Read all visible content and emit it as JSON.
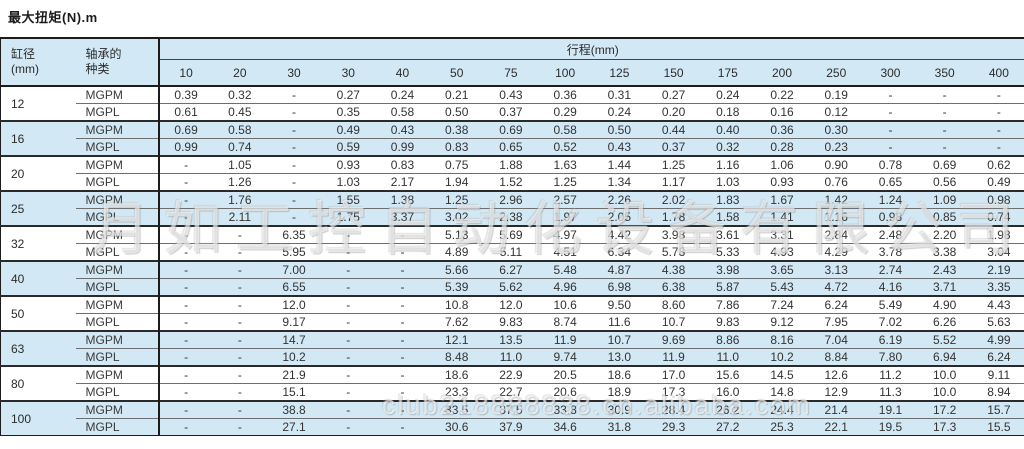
{
  "title": "最大扭矩(N).m",
  "table": {
    "col_bore_line1": "缸径",
    "col_bore_line2": "(mm)",
    "col_bearing_line1": "轴承的",
    "col_bearing_line2": "种类",
    "stroke_header": "行程(mm)",
    "stroke_columns": [
      "10",
      "20",
      "30",
      "30",
      "40",
      "50",
      "75",
      "100",
      "125",
      "150",
      "175",
      "200",
      "250",
      "300",
      "350",
      "400"
    ],
    "groups": [
      {
        "bore": "12",
        "rows": [
          {
            "type": "MGPM",
            "values": [
              "0.39",
              "0.32",
              "-",
              "0.27",
              "0.24",
              "0.21",
              "0.43",
              "0.36",
              "0.31",
              "0.27",
              "0.24",
              "0.22",
              "0.19",
              "-",
              "-",
              "-"
            ]
          },
          {
            "type": "MGPL",
            "values": [
              "0.61",
              "0.45",
              "-",
              "0.35",
              "0.58",
              "0.50",
              "0.37",
              "0.29",
              "0.24",
              "0.20",
              "0.18",
              "0.16",
              "0.12",
              "-",
              "-",
              "-"
            ]
          }
        ]
      },
      {
        "bore": "16",
        "rows": [
          {
            "type": "MGPM",
            "values": [
              "0.69",
              "0.58",
              "-",
              "0.49",
              "0.43",
              "0.38",
              "0.69",
              "0.58",
              "0.50",
              "0.44",
              "0.40",
              "0.36",
              "0.30",
              "-",
              "-",
              "-"
            ]
          },
          {
            "type": "MGPL",
            "values": [
              "0.99",
              "0.74",
              "-",
              "0.59",
              "0.99",
              "0.83",
              "0.65",
              "0.52",
              "0.43",
              "0.37",
              "0.32",
              "0.28",
              "0.23",
              "-",
              "-",
              "-"
            ]
          }
        ]
      },
      {
        "bore": "20",
        "rows": [
          {
            "type": "MGPM",
            "values": [
              "-",
              "1.05",
              "-",
              "0.93",
              "0.83",
              "0.75",
              "1.88",
              "1.63",
              "1.44",
              "1.25",
              "1.16",
              "1.06",
              "0.90",
              "0.78",
              "0.69",
              "0.62"
            ]
          },
          {
            "type": "MGPL",
            "values": [
              "-",
              "1.26",
              "-",
              "1.03",
              "2.17",
              "1.94",
              "1.52",
              "1.25",
              "1.34",
              "1.17",
              "1.03",
              "0.93",
              "0.76",
              "0.65",
              "0.56",
              "0.49"
            ]
          }
        ]
      },
      {
        "bore": "25",
        "rows": [
          {
            "type": "MGPM",
            "values": [
              "-",
              "1.76",
              "-",
              "1.55",
              "1.38",
              "1.25",
              "2.96",
              "2.57",
              "2.26",
              "2.02",
              "1.83",
              "1.67",
              "1.42",
              "1.24",
              "1.09",
              "0.98"
            ]
          },
          {
            "type": "MGPL",
            "values": [
              "-",
              "2.11",
              "-",
              "1.75",
              "3.37",
              "3.02",
              "2.38",
              "1.97",
              "2.05",
              "1.78",
              "1.58",
              "1.41",
              "1.16",
              "0.98",
              "0.85",
              "0.74"
            ]
          }
        ]
      },
      {
        "bore": "32",
        "rows": [
          {
            "type": "MGPM",
            "values": [
              "-",
              "-",
              "6.35",
              "-",
              "-",
              "5.13",
              "5.69",
              "4.97",
              "4.42",
              "3.98",
              "3.61",
              "3.31",
              "2.84",
              "2.48",
              "2.20",
              "1.98"
            ]
          },
          {
            "type": "MGPL",
            "values": [
              "-",
              "-",
              "5.95",
              "-",
              "-",
              "4.89",
              "5.11",
              "4.51",
              "6.34",
              "5.78",
              "5.33",
              "4.93",
              "4.29",
              "3.78",
              "3.38",
              "3.04"
            ]
          }
        ]
      },
      {
        "bore": "40",
        "rows": [
          {
            "type": "MGPM",
            "values": [
              "-",
              "-",
              "7.00",
              "-",
              "-",
              "5.66",
              "6.27",
              "5.48",
              "4.87",
              "4.38",
              "3.98",
              "3.65",
              "3.13",
              "2.74",
              "2.43",
              "2.19"
            ]
          },
          {
            "type": "MGPL",
            "values": [
              "-",
              "-",
              "6.55",
              "-",
              "-",
              "5.39",
              "5.62",
              "4.96",
              "6.98",
              "6.38",
              "5.87",
              "5.43",
              "4.72",
              "4.16",
              "3.71",
              "3.35"
            ]
          }
        ]
      },
      {
        "bore": "50",
        "rows": [
          {
            "type": "MGPM",
            "values": [
              "-",
              "-",
              "12.0",
              "-",
              "-",
              "10.8",
              "12.0",
              "10.6",
              "9.50",
              "8.60",
              "7.86",
              "7.24",
              "6.24",
              "5.49",
              "4.90",
              "4.43"
            ]
          },
          {
            "type": "MGPL",
            "values": [
              "-",
              "-",
              "9.17",
              "-",
              "-",
              "7.62",
              "9.83",
              "8.74",
              "11.6",
              "10.7",
              "9.83",
              "9.12",
              "7.95",
              "7.02",
              "6.26",
              "5.63"
            ]
          }
        ]
      },
      {
        "bore": "63",
        "rows": [
          {
            "type": "MGPM",
            "values": [
              "-",
              "-",
              "14.7",
              "-",
              "-",
              "12.1",
              "13.5",
              "11.9",
              "10.7",
              "9.69",
              "8.86",
              "8.16",
              "7.04",
              "6.19",
              "5.52",
              "4.99"
            ]
          },
          {
            "type": "MGPL",
            "values": [
              "-",
              "-",
              "10.2",
              "-",
              "-",
              "8.48",
              "11.0",
              "9.74",
              "13.0",
              "11.9",
              "11.0",
              "10.2",
              "8.84",
              "7.80",
              "6.94",
              "6.24"
            ]
          }
        ]
      },
      {
        "bore": "80",
        "rows": [
          {
            "type": "MGPM",
            "values": [
              "-",
              "-",
              "21.9",
              "-",
              "-",
              "18.6",
              "22.9",
              "20.5",
              "18.6",
              "17.0",
              "15.6",
              "14.5",
              "12.6",
              "11.2",
              "10.0",
              "9.11"
            ]
          },
          {
            "type": "MGPL",
            "values": [
              "-",
              "-",
              "15.1",
              "-",
              "-",
              "23.3",
              "22.7",
              "20.6",
              "18.9",
              "17.3",
              "16.0",
              "14.8",
              "12.9",
              "11.3",
              "10.0",
              "8.94"
            ]
          }
        ]
      },
      {
        "bore": "100",
        "rows": [
          {
            "type": "MGPM",
            "values": [
              "-",
              "-",
              "38.8",
              "-",
              "-",
              "33.5",
              "37.5",
              "33.8",
              "30.9",
              "28.4",
              "26.2",
              "24.4",
              "21.4",
              "19.1",
              "17.2",
              "15.7"
            ]
          },
          {
            "type": "MGPL",
            "values": [
              "-",
              "-",
              "27.1",
              "-",
              "-",
              "30.6",
              "37.9",
              "34.6",
              "31.8",
              "29.3",
              "27.2",
              "25.3",
              "22.1",
              "19.5",
              "17.3",
              "15.5"
            ]
          }
        ]
      }
    ]
  },
  "watermarks": {
    "company": "月如工控自动化设备有限公司",
    "url": "club218888838.cn.alibaba.com"
  },
  "colors": {
    "band_blue": "#d2e8f5",
    "border_dark": "#1c1c1c",
    "border_light": "#6e6e6e",
    "text": "#333333"
  }
}
